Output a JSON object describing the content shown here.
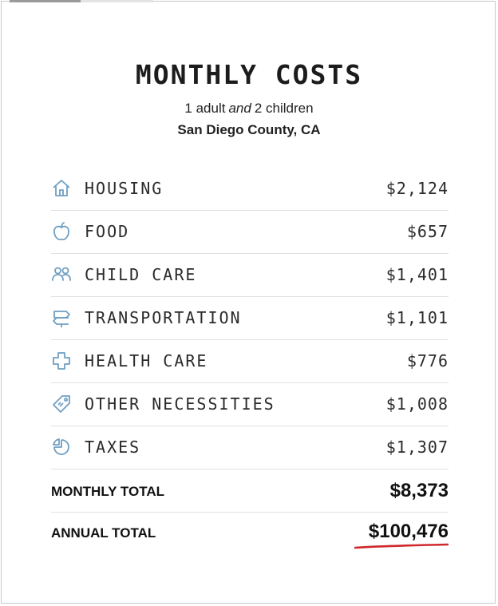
{
  "header": {
    "title": "MONTHLY COSTS",
    "adults": "1 adult",
    "conjunction": "and",
    "children": "2 children",
    "location": "San Diego County, CA"
  },
  "costs": [
    {
      "icon": "home-icon",
      "label": "HOUSING",
      "amount": "$2,124"
    },
    {
      "icon": "apple-icon",
      "label": "FOOD",
      "amount": "$657"
    },
    {
      "icon": "people-icon",
      "label": "CHILD CARE",
      "amount": "$1,401"
    },
    {
      "icon": "signpost-icon",
      "label": "TRANSPORTATION",
      "amount": "$1,101"
    },
    {
      "icon": "health-cross-icon",
      "label": "HEALTH CARE",
      "amount": "$776"
    },
    {
      "icon": "tag-icon",
      "label": "OTHER NECESSITIES",
      "amount": "$1,008"
    },
    {
      "icon": "pie-icon",
      "label": "TAXES",
      "amount": "$1,307"
    }
  ],
  "totals": {
    "monthly_label": "MONTHLY TOTAL",
    "monthly_amount": "$8,373",
    "annual_label": "ANNUAL TOTAL",
    "annual_amount": "$100,476"
  },
  "colors": {
    "icon": "#6f9fc2",
    "accent_underline": "#d0282c",
    "divider": "#e1e1e1"
  }
}
